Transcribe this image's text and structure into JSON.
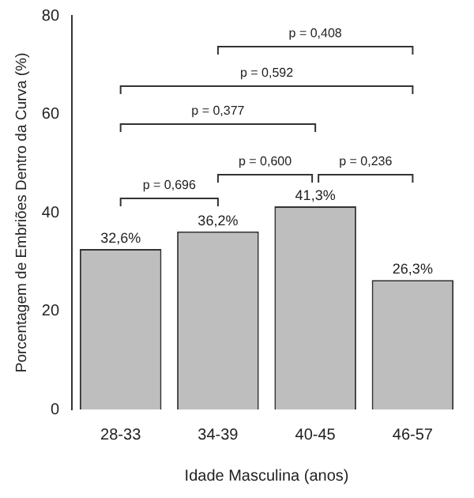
{
  "chart_data": {
    "type": "bar",
    "xlabel": "Idade Masculina (anos)",
    "ylabel": "Porcentagem de Embriões Dentro da Curva (%)",
    "categories": [
      "28-33",
      "34-39",
      "40-45",
      "46-57"
    ],
    "values": [
      32.6,
      36.2,
      41.3,
      26.3
    ],
    "value_labels": [
      "32,6%",
      "36,2%",
      "41,3%",
      "26,3%"
    ],
    "color": "#bebebe",
    "ylim": [
      0,
      80
    ],
    "yticks": [
      0,
      20,
      40,
      60,
      80
    ],
    "grid": false,
    "legend": false,
    "annotations": [
      "p = 0,408",
      "p = 0,592",
      "p = 0,377",
      "p = 0,600",
      "p = 0,236",
      "p = 0,696"
    ]
  }
}
